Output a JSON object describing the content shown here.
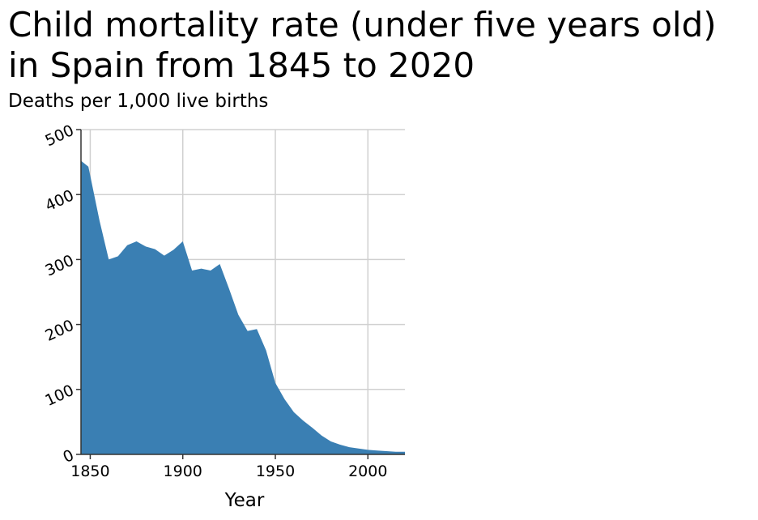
{
  "chart_data": {
    "type": "area",
    "title": "Child mortality rate (under five years old) in Spain from 1845 to 2020",
    "subtitle": "Deaths per 1,000 live births",
    "xlabel": "Year",
    "ylabel": "",
    "xlim": [
      1845,
      2020
    ],
    "ylim": [
      0,
      500
    ],
    "xticks": [
      1850,
      1900,
      1950,
      2000
    ],
    "yticks": [
      0,
      100,
      200,
      300,
      400,
      500
    ],
    "grid": true,
    "color": "#3a7fb3",
    "x": [
      1845,
      1849,
      1855,
      1860,
      1865,
      1870,
      1875,
      1880,
      1885,
      1890,
      1895,
      1900,
      1905,
      1910,
      1915,
      1920,
      1925,
      1930,
      1935,
      1940,
      1945,
      1950,
      1955,
      1960,
      1965,
      1970,
      1975,
      1980,
      1985,
      1990,
      1995,
      2000,
      2005,
      2010,
      2015,
      2020
    ],
    "y": [
      452,
      443,
      360,
      300,
      305,
      322,
      328,
      320,
      316,
      306,
      315,
      328,
      283,
      286,
      283,
      293,
      255,
      215,
      190,
      193,
      160,
      110,
      85,
      65,
      52,
      41,
      29,
      20,
      15,
      11,
      9,
      7,
      6,
      5,
      4,
      4
    ]
  }
}
